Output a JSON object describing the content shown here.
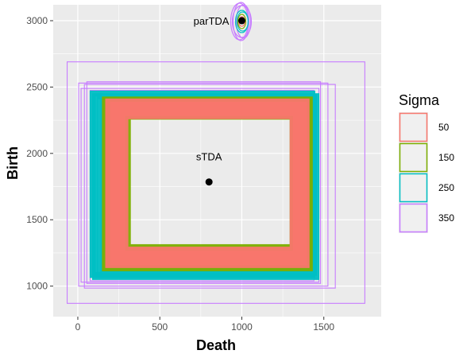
{
  "chart_data": {
    "type": "scatter",
    "title": "",
    "xlabel": "Death",
    "ylabel": "Birth",
    "xlim": [
      -150,
      1850
    ],
    "ylim": [
      770,
      3120
    ],
    "x_ticks": [
      0,
      500,
      1000,
      1500
    ],
    "y_ticks": [
      1000,
      1500,
      2000,
      2500,
      3000
    ],
    "x_tick_labels": [
      "0",
      "500",
      "1000",
      "1500"
    ],
    "y_tick_labels": [
      "1000",
      "1500",
      "2000",
      "2500",
      "3000"
    ],
    "grid": true,
    "legend": {
      "title": "Sigma",
      "position": "right",
      "entries": [
        {
          "label": "50",
          "color": "#F8766D"
        },
        {
          "label": "150",
          "color": "#7CAE00"
        },
        {
          "label": "250",
          "color": "#00BFC4"
        },
        {
          "label": "350",
          "color": "#C77CFF"
        }
      ]
    },
    "points": [
      {
        "label": "parTDA",
        "x": 1000,
        "y": 3000
      },
      {
        "label": "sTDA",
        "x": 800,
        "y": 1785
      }
    ],
    "series": [
      {
        "name": "350",
        "color": "#C77CFF",
        "rectangles": [
          [
            -65,
            1750,
            870,
            2690
          ],
          [
            5,
            1525,
            1000,
            2530
          ],
          [
            20,
            1470,
            1030,
            2490
          ],
          [
            40,
            1570,
            985,
            2520
          ],
          [
            55,
            1480,
            1020,
            2540
          ],
          [
            75,
            1440,
            1040,
            2475
          ],
          [
            255,
            1330,
            1250,
            2310
          ]
        ]
      },
      {
        "name": "250",
        "color": "#00BFC4",
        "rectangles": [
          [
            75,
            1445,
            1065,
            2470
          ],
          [
            90,
            1470,
            1050,
            2450
          ],
          [
            120,
            1455,
            1080,
            2440
          ],
          [
            140,
            1440,
            1095,
            2430
          ]
        ]
      },
      {
        "name": "150",
        "color": "#7CAE00",
        "rectangles": [
          [
            150,
            1430,
            1115,
            2425
          ],
          [
            175,
            1420,
            1140,
            2405
          ],
          [
            205,
            1400,
            1180,
            2375
          ],
          [
            235,
            1375,
            1210,
            2345
          ],
          [
            270,
            1345,
            1250,
            2320
          ]
        ]
      },
      {
        "name": "50",
        "color": "#F8766D",
        "rectangles": [
          [
            170,
            1410,
            1140,
            2410
          ],
          [
            200,
            1395,
            1160,
            2385
          ],
          [
            230,
            1370,
            1195,
            2355
          ],
          [
            250,
            1350,
            1225,
            2330
          ]
        ]
      }
    ]
  }
}
